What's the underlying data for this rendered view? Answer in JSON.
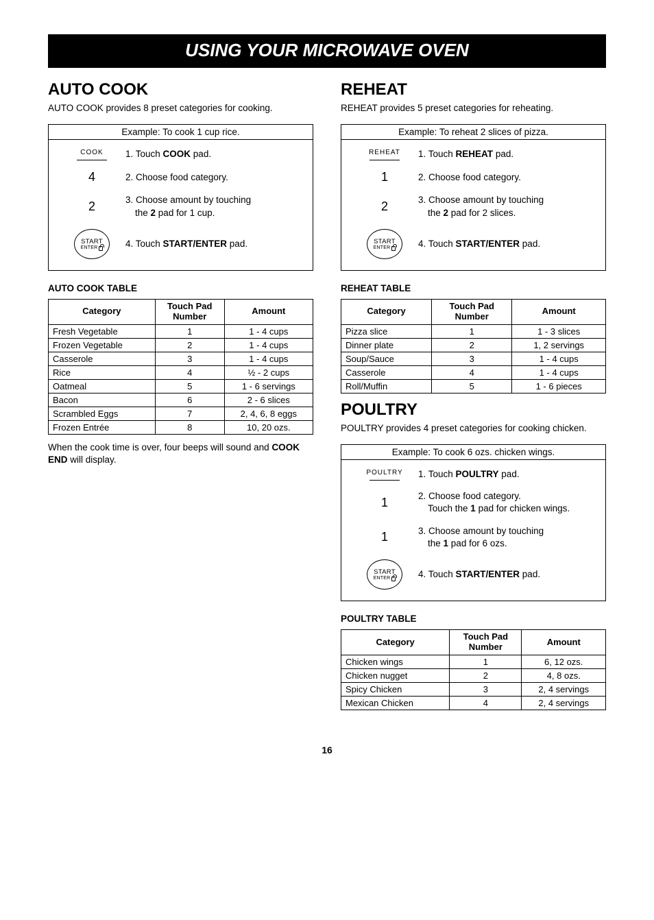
{
  "pageTitle": "USING YOUR MICROWAVE OVEN",
  "pageNumber": "16",
  "left": {
    "autoCook": {
      "heading": "AUTO COOK",
      "intro": "AUTO COOK provides 8 preset categories for cooking.",
      "exampleCaption": "Example: To cook 1 cup rice.",
      "steps": [
        {
          "iconType": "label",
          "iconText": "COOK",
          "textParts": [
            "1. Touch ",
            {
              "b": "COOK"
            },
            " pad."
          ]
        },
        {
          "iconType": "num",
          "iconText": "4",
          "textParts": [
            "2. Choose food category."
          ]
        },
        {
          "iconType": "num",
          "iconText": "2",
          "textParts": [
            "3. Choose amount by touching"
          ],
          "sub": [
            "the ",
            {
              "b": "2"
            },
            " pad for 1 cup."
          ]
        },
        {
          "iconType": "start",
          "textParts": [
            "4. Touch ",
            {
              "b": "START/ENTER"
            },
            " pad."
          ]
        }
      ],
      "tableTitle": "AUTO COOK TABLE",
      "columns": [
        "Category",
        "Touch Pad Number",
        "Amount"
      ],
      "rows": [
        [
          "Fresh Vegetable",
          "1",
          "1 - 4 cups"
        ],
        [
          "Frozen Vegetable",
          "2",
          "1 - 4 cups"
        ],
        [
          "Casserole",
          "3",
          "1 - 4 cups"
        ],
        [
          "Rice",
          "4",
          "½ - 2 cups"
        ],
        [
          "Oatmeal",
          "5",
          "1 - 6 servings"
        ],
        [
          "Bacon",
          "6",
          "2 - 6 slices"
        ],
        [
          "Scrambled Eggs",
          "7",
          "2, 4, 6, 8 eggs"
        ],
        [
          "Frozen Entrée",
          "8",
          "10, 20 ozs."
        ]
      ],
      "noteParts": [
        "When the cook time is over, four beeps will sound and ",
        {
          "b": "COOK END"
        },
        " will display."
      ]
    }
  },
  "right": {
    "reheat": {
      "heading": "REHEAT",
      "intro": "REHEAT provides 5 preset  categories for reheating.",
      "exampleCaption": "Example: To reheat 2 slices of pizza.",
      "steps": [
        {
          "iconType": "label",
          "iconText": "REHEAT",
          "textParts": [
            "1. Touch ",
            {
              "b": "REHEAT"
            },
            " pad."
          ]
        },
        {
          "iconType": "num",
          "iconText": "1",
          "textParts": [
            "2. Choose food category."
          ]
        },
        {
          "iconType": "num",
          "iconText": "2",
          "textParts": [
            "3. Choose amount by touching"
          ],
          "sub": [
            "the ",
            {
              "b": "2"
            },
            " pad for 2 slices."
          ]
        },
        {
          "iconType": "start",
          "textParts": [
            "4. Touch ",
            {
              "b": "START/ENTER"
            },
            " pad."
          ]
        }
      ],
      "tableTitle": "REHEAT TABLE",
      "columns": [
        "Category",
        "Touch Pad Number",
        "Amount"
      ],
      "rows": [
        [
          "Pizza slice",
          "1",
          "1 - 3 slices"
        ],
        [
          "Dinner plate",
          "2",
          "1, 2 servings"
        ],
        [
          "Soup/Sauce",
          "3",
          "1 - 4 cups"
        ],
        [
          "Casserole",
          "4",
          "1 - 4 cups"
        ],
        [
          "Roll/Muffin",
          "5",
          "1 - 6 pieces"
        ]
      ]
    },
    "poultry": {
      "heading": "POULTRY",
      "intro": "POULTRY provides 4 preset categories for cooking chicken.",
      "exampleCaption": "Example: To cook 6 ozs. chicken wings.",
      "steps": [
        {
          "iconType": "label",
          "iconText": "POULTRY",
          "textParts": [
            "1. Touch ",
            {
              "b": "POULTRY"
            },
            " pad."
          ]
        },
        {
          "iconType": "num",
          "iconText": "1",
          "textParts": [
            "2. Choose food category."
          ],
          "sub": [
            "Touch the ",
            {
              "b": "1"
            },
            " pad for chicken wings."
          ]
        },
        {
          "iconType": "num",
          "iconText": "1",
          "textParts": [
            "3. Choose amount by touching"
          ],
          "sub": [
            "the ",
            {
              "b": "1"
            },
            " pad for 6 ozs."
          ]
        },
        {
          "iconType": "start",
          "textParts": [
            "4. Touch ",
            {
              "b": "START/ENTER"
            },
            " pad."
          ]
        }
      ],
      "tableTitle": "POULTRY TABLE",
      "columns": [
        "Category",
        "Touch Pad Number",
        "Amount"
      ],
      "rows": [
        [
          "Chicken wings",
          "1",
          "6, 12 ozs."
        ],
        [
          "Chicken nugget",
          "2",
          "4, 8 ozs."
        ],
        [
          "Spicy Chicken",
          "3",
          "2, 4 servings"
        ],
        [
          "Mexican Chicken",
          "4",
          "2, 4 servings"
        ]
      ]
    }
  }
}
